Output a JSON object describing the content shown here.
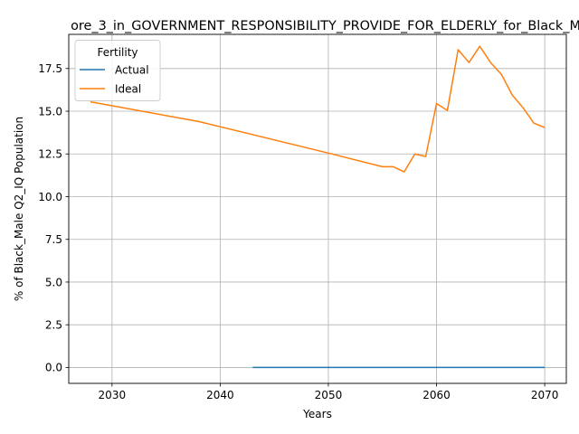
{
  "chart_data": {
    "type": "line",
    "title": "ore_3_in_GOVERNMENT_RESPONSIBILITY_PROVIDE_FOR_ELDERLY_for_Black_M",
    "xlabel": "Years",
    "ylabel": "% of Black_Male Q2_IQ Population",
    "xlim": [
      2026,
      2072
    ],
    "ylim": [
      -0.93,
      19.5
    ],
    "x_ticks": [
      2030,
      2040,
      2050,
      2060,
      2070
    ],
    "y_ticks": [
      0.0,
      2.5,
      5.0,
      7.5,
      10.0,
      12.5,
      15.0,
      17.5
    ],
    "y_tick_labels": [
      "0.0",
      "2.5",
      "5.0",
      "7.5",
      "10.0",
      "12.5",
      "15.0",
      "17.5"
    ],
    "grid": true,
    "legend": {
      "title": "Fertility",
      "position": "upper-left"
    },
    "series": [
      {
        "name": "Actual",
        "color": "#1f77b4",
        "x": [
          2043,
          2050,
          2055,
          2060,
          2065,
          2070
        ],
        "y": [
          0.0,
          0.0,
          0.0,
          0.0,
          0.0,
          0.0
        ]
      },
      {
        "name": "Ideal",
        "color": "#ff7f0e",
        "x": [
          2028,
          2038,
          2050,
          2055,
          2056,
          2057,
          2058,
          2059,
          2060,
          2061,
          2062,
          2063,
          2064,
          2065,
          2066,
          2067,
          2068,
          2069,
          2070
        ],
        "y": [
          15.55,
          14.4,
          12.55,
          11.75,
          11.75,
          11.45,
          12.5,
          12.35,
          15.45,
          15.05,
          18.6,
          17.85,
          18.8,
          17.85,
          17.15,
          15.95,
          15.2,
          14.3,
          14.05
        ]
      }
    ]
  }
}
